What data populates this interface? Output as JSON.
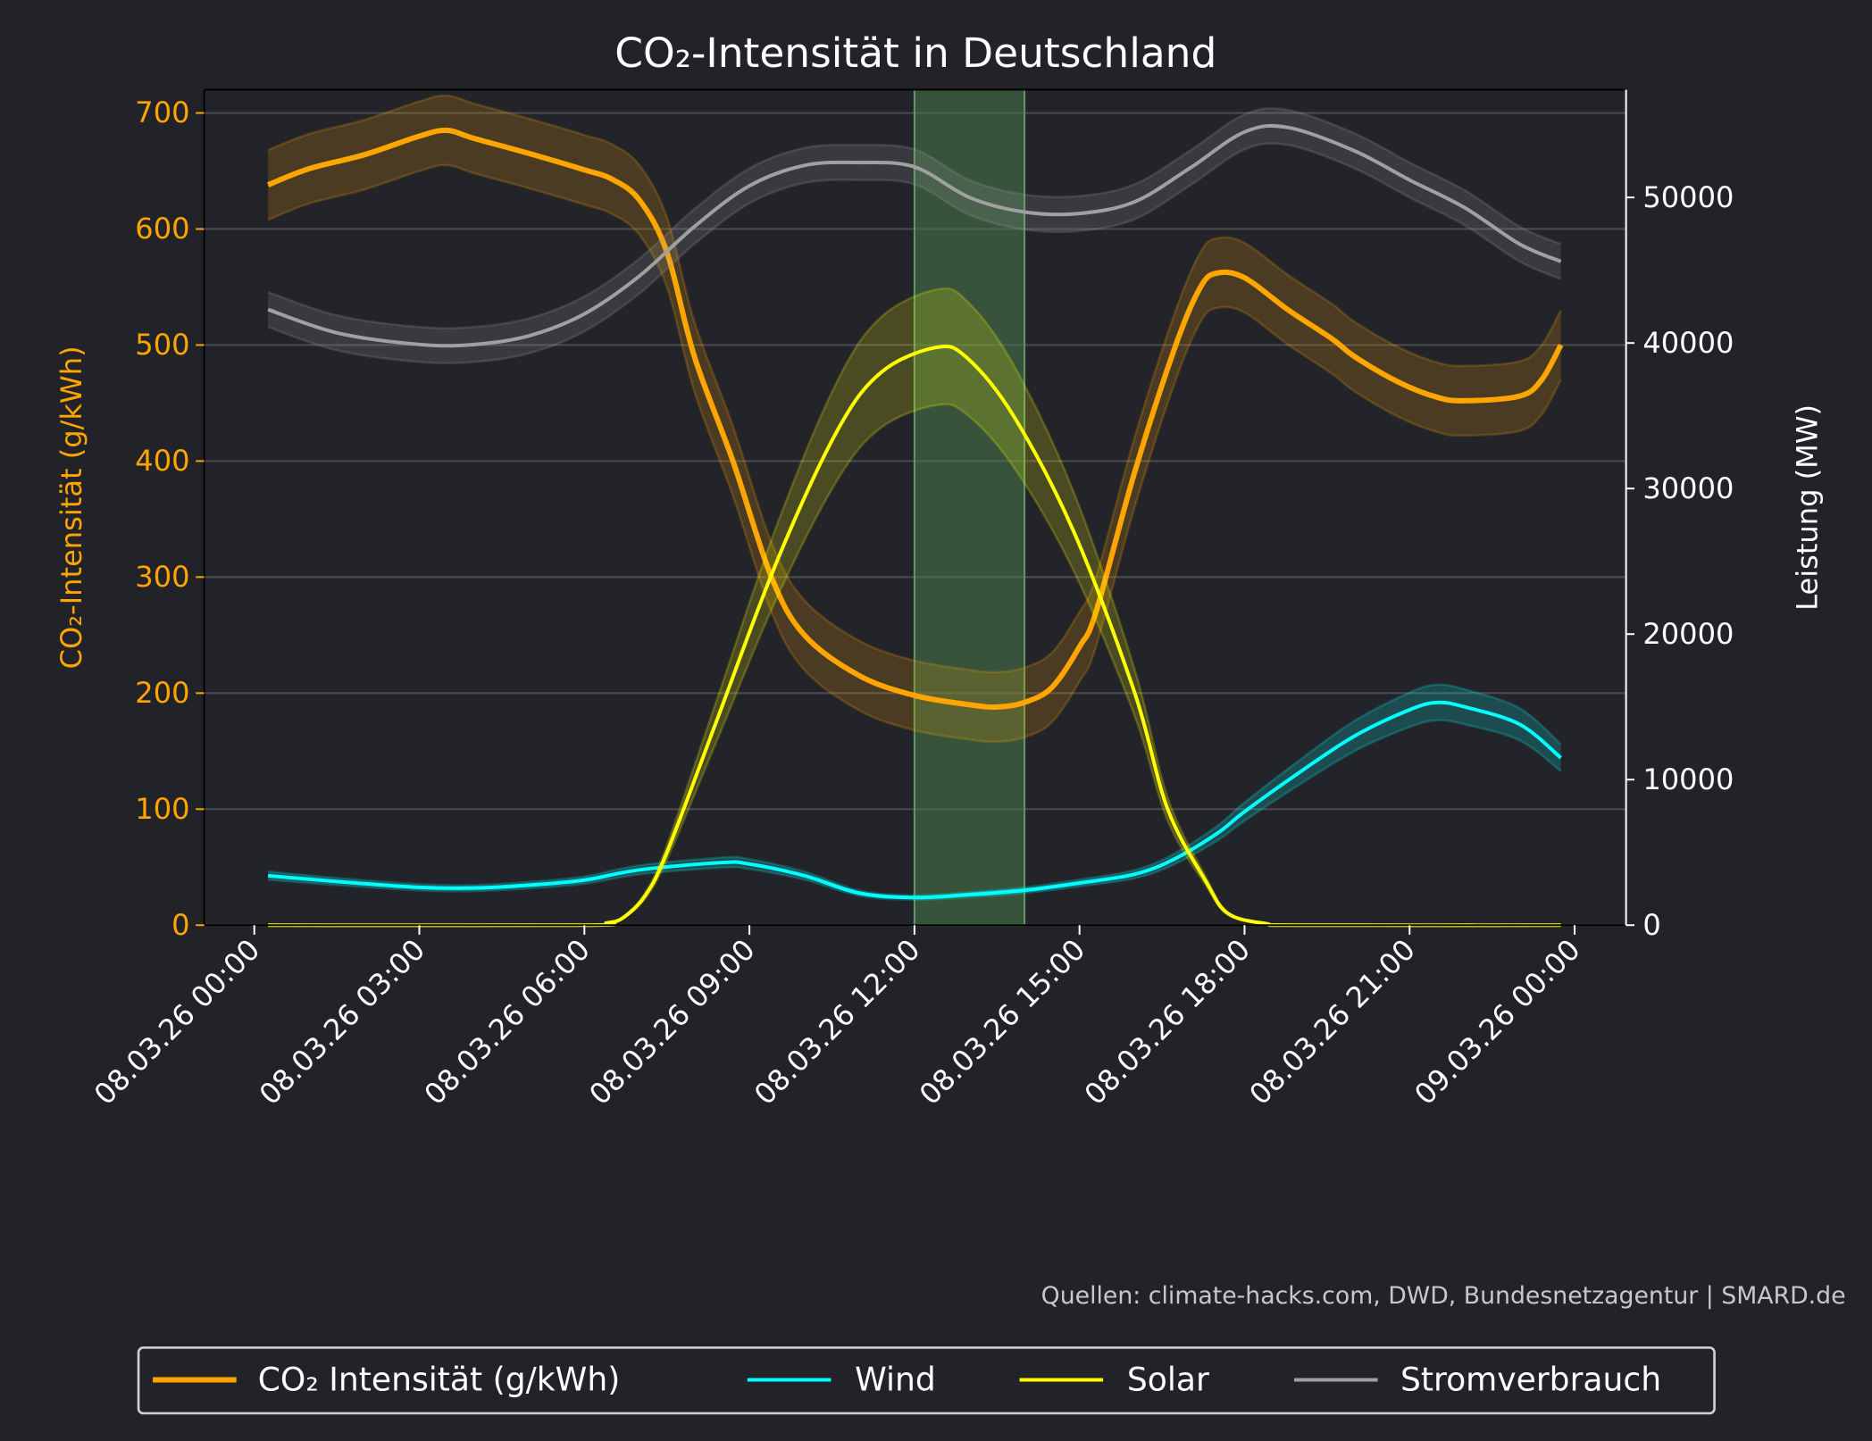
{
  "chart_data": {
    "type": "line",
    "title": "CO₂-Intensität in Deutschland",
    "ylabel_left": "CO₂-Intensität (g/kWh)",
    "ylabel_right": "Leistung (MW)",
    "ylim_left": [
      0,
      720
    ],
    "ylim_right": [
      0,
      57400
    ],
    "yticks_left": [
      "0",
      "100",
      "200",
      "300",
      "400",
      "500",
      "600",
      "700"
    ],
    "yticks_right": [
      "0",
      "10000",
      "20000",
      "30000",
      "40000",
      "50000"
    ],
    "xticks": [
      "08.03.26 00:00",
      "08.03.26 03:00",
      "08.03.26 06:00",
      "08.03.26 09:00",
      "08.03.26 12:00",
      "08.03.26 15:00",
      "08.03.26 18:00",
      "08.03.26 21:00",
      "09.03.26 00:00"
    ],
    "x_unit": "hours since 08.03.26 00:00",
    "grid": true,
    "legend_placement": "bottom",
    "highlight_window": [
      "08.03.26 12:00",
      "08.03.26 14:00"
    ],
    "highlight_color": "#4a7a4a",
    "series": [
      {
        "name": "CO₂ Intensität (g/kWh)",
        "axis": "left",
        "color": "#FFA500",
        "band": {
          "type": "abs",
          "value": 30
        },
        "points": [
          [
            0.25,
            638
          ],
          [
            1,
            652
          ],
          [
            2,
            664
          ],
          [
            3,
            680
          ],
          [
            3.5,
            685
          ],
          [
            4,
            678
          ],
          [
            5,
            665
          ],
          [
            6,
            651
          ],
          [
            6.5,
            643
          ],
          [
            7,
            625
          ],
          [
            7.5,
            580
          ],
          [
            8,
            490
          ],
          [
            8.7,
            400
          ],
          [
            9.4,
            300
          ],
          [
            10,
            250
          ],
          [
            11,
            215
          ],
          [
            12,
            198
          ],
          [
            13,
            190
          ],
          [
            13.5,
            188
          ],
          [
            14,
            192
          ],
          [
            14.5,
            205
          ],
          [
            15,
            240
          ],
          [
            15.3,
            270
          ],
          [
            16,
            390
          ],
          [
            16.75,
            500
          ],
          [
            17.2,
            550
          ],
          [
            17.5,
            562
          ],
          [
            18,
            558
          ],
          [
            18.8,
            530
          ],
          [
            19.6,
            505
          ],
          [
            20,
            490
          ],
          [
            20.8,
            468
          ],
          [
            21.5,
            455
          ],
          [
            22,
            452
          ],
          [
            23,
            456
          ],
          [
            23.4,
            470
          ],
          [
            23.75,
            500
          ]
        ]
      },
      {
        "name": "Wind",
        "axis": "right",
        "color": "#00FFFF",
        "band": {
          "type": "rel",
          "value": 0.08
        },
        "points": [
          [
            0.25,
            3400
          ],
          [
            1.5,
            3000
          ],
          [
            3,
            2600
          ],
          [
            4,
            2550
          ],
          [
            5,
            2750
          ],
          [
            6,
            3100
          ],
          [
            7,
            3800
          ],
          [
            8.5,
            4300
          ],
          [
            9,
            4200
          ],
          [
            10,
            3400
          ],
          [
            11,
            2200
          ],
          [
            12,
            1900
          ],
          [
            13,
            2100
          ],
          [
            14,
            2400
          ],
          [
            15,
            2900
          ],
          [
            16,
            3500
          ],
          [
            16.7,
            4500
          ],
          [
            17.5,
            6300
          ],
          [
            18,
            7800
          ],
          [
            19,
            10500
          ],
          [
            20,
            13000
          ],
          [
            21,
            14800
          ],
          [
            21.5,
            15300
          ],
          [
            22,
            15000
          ],
          [
            23,
            13800
          ],
          [
            23.75,
            11500
          ]
        ]
      },
      {
        "name": "Solar",
        "axis": "right",
        "color": "#FFFF00",
        "band": {
          "type": "rel",
          "value": 0.1
        },
        "points": [
          [
            0.25,
            0
          ],
          [
            6,
            0
          ],
          [
            6.4,
            150
          ],
          [
            6.7,
            500
          ],
          [
            7.1,
            2000
          ],
          [
            7.5,
            5000
          ],
          [
            8.4,
            14000
          ],
          [
            9.5,
            25000
          ],
          [
            10.6,
            34000
          ],
          [
            11.4,
            38000
          ],
          [
            12.4,
            39700
          ],
          [
            12.95,
            39000
          ],
          [
            13.8,
            35000
          ],
          [
            14.9,
            27000
          ],
          [
            16,
            16000
          ],
          [
            16.6,
            8000
          ],
          [
            17.3,
            3000
          ],
          [
            17.7,
            800
          ],
          [
            18.4,
            100
          ],
          [
            19,
            0
          ],
          [
            23.75,
            0
          ]
        ]
      },
      {
        "name": "Stromverbrauch",
        "axis": "right",
        "color": "#A0A0A0",
        "band": {
          "type": "abs",
          "value": 1200
        },
        "points": [
          [
            0.25,
            42300
          ],
          [
            1.5,
            40700
          ],
          [
            3,
            39900
          ],
          [
            4,
            39900
          ],
          [
            5,
            40500
          ],
          [
            6,
            42000
          ],
          [
            7,
            44600
          ],
          [
            8,
            48000
          ],
          [
            9,
            50800
          ],
          [
            10,
            52200
          ],
          [
            11,
            52400
          ],
          [
            12,
            52100
          ],
          [
            13,
            50000
          ],
          [
            14,
            49000
          ],
          [
            15,
            48900
          ],
          [
            16,
            49700
          ],
          [
            17,
            52000
          ],
          [
            18,
            54500
          ],
          [
            18.8,
            54800
          ],
          [
            20,
            53200
          ],
          [
            21,
            51200
          ],
          [
            22,
            49300
          ],
          [
            23,
            46800
          ],
          [
            23.75,
            45600
          ]
        ]
      }
    ],
    "source": "Quellen: climate-hacks.com, DWD, Bundesnetzagentur | SMARD.de"
  }
}
